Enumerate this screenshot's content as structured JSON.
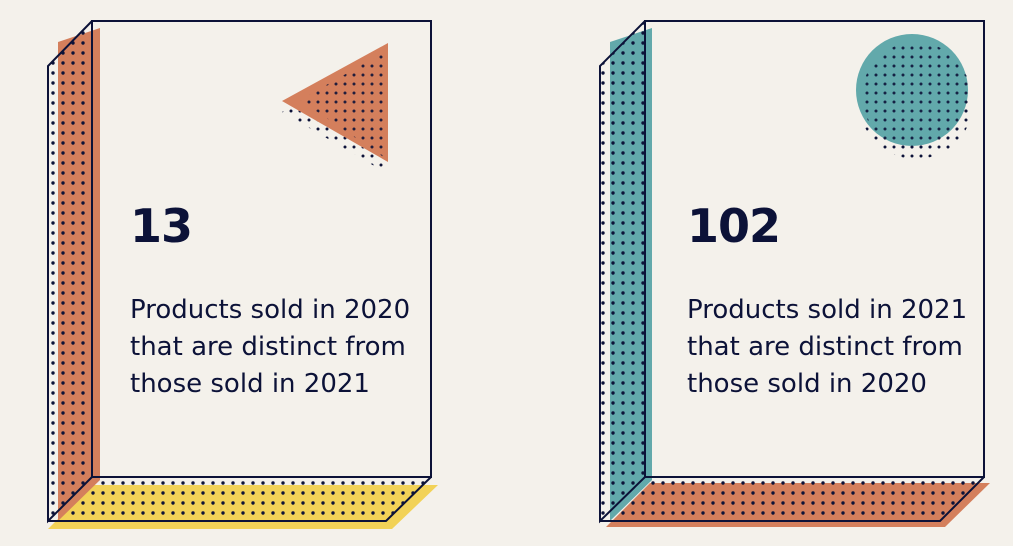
{
  "cards": [
    {
      "number": "13",
      "description": "Products sold in 2020 that are distinct from those sold in 2021",
      "side_color": "#d47f5c",
      "bottom_color": "#f2d257",
      "shape": "triangle",
      "shape_color": "#d47f5c"
    },
    {
      "number": "102",
      "description": "Products sold in 2021 that are distinct from those sold in 2020",
      "side_color": "#62a9ab",
      "bottom_color": "#d47f5c",
      "shape": "circle",
      "shape_color": "#62a9ab"
    }
  ],
  "colors": {
    "ink": "#0c1238",
    "background": "#f4f1eb"
  }
}
